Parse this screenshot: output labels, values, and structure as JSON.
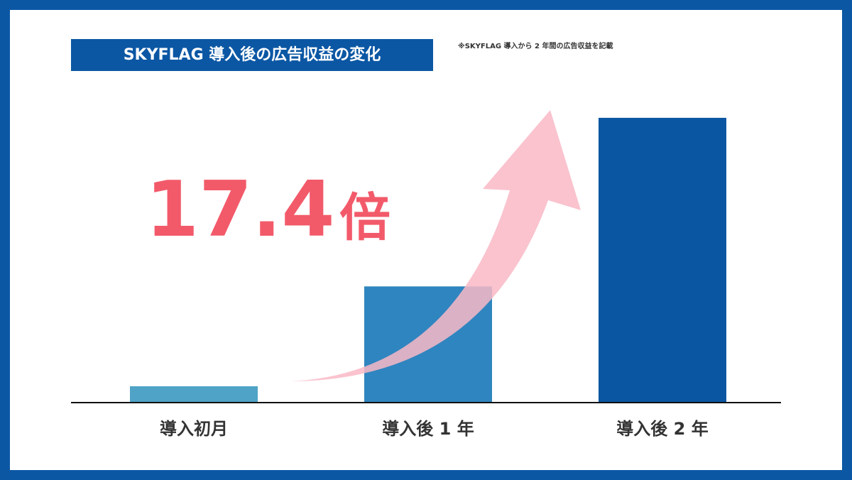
{
  "chart_data": {
    "type": "bar",
    "title": "SKYFLAG 導入後の広告収益の変化",
    "note": "※SKYFLAG 導入から 2 年間の広告収益を記載",
    "callout_value": "17.4",
    "callout_unit": "倍",
    "categories": [
      "導入初月",
      "導入後 1 年",
      "導入後 2 年"
    ],
    "values": [
      1,
      7.1,
      17.4
    ],
    "colors": [
      "#4fa3c6",
      "#2f85bf",
      "#0a56a3"
    ],
    "ylim": [
      0,
      20
    ]
  }
}
